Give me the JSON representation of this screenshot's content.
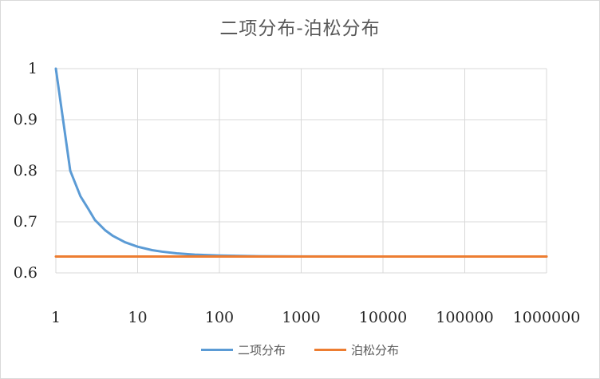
{
  "chart_data": {
    "type": "line",
    "title": "二项分布-泊松分布",
    "x_scale": "log",
    "xlim": [
      1,
      1000000
    ],
    "ylim": [
      0.6,
      1.0
    ],
    "x_tick_labels": [
      "1",
      "10",
      "100",
      "1000",
      "10000",
      "100000",
      "1000000"
    ],
    "y_tick_labels": [
      "0.6",
      "0.7",
      "0.8",
      "0.9",
      "1"
    ],
    "y_ticks": [
      0.6,
      0.7,
      0.8,
      0.9,
      1.0
    ],
    "x_ticks": [
      1,
      10,
      100,
      1000,
      10000,
      100000,
      1000000
    ],
    "grid": true,
    "legend_position": "bottom",
    "series": [
      {
        "name": "二项分布",
        "color": "#5b9bd5",
        "x": [
          1,
          1.5,
          2,
          2.5,
          3,
          4,
          5,
          7,
          10,
          15,
          20,
          30,
          50,
          100,
          300,
          1000,
          10000,
          100000,
          1000000
        ],
        "y": [
          1.0,
          0.8,
          0.75,
          0.725,
          0.7037,
          0.6836,
          0.6723,
          0.6601,
          0.6513,
          0.6445,
          0.6415,
          0.6383,
          0.6358,
          0.634,
          0.6327,
          0.6323,
          0.6321,
          0.6321,
          0.6321
        ]
      },
      {
        "name": "泊松分布",
        "color": "#ed7d31",
        "x": [
          1,
          1000000
        ],
        "y": [
          0.6321,
          0.6321
        ]
      }
    ]
  }
}
